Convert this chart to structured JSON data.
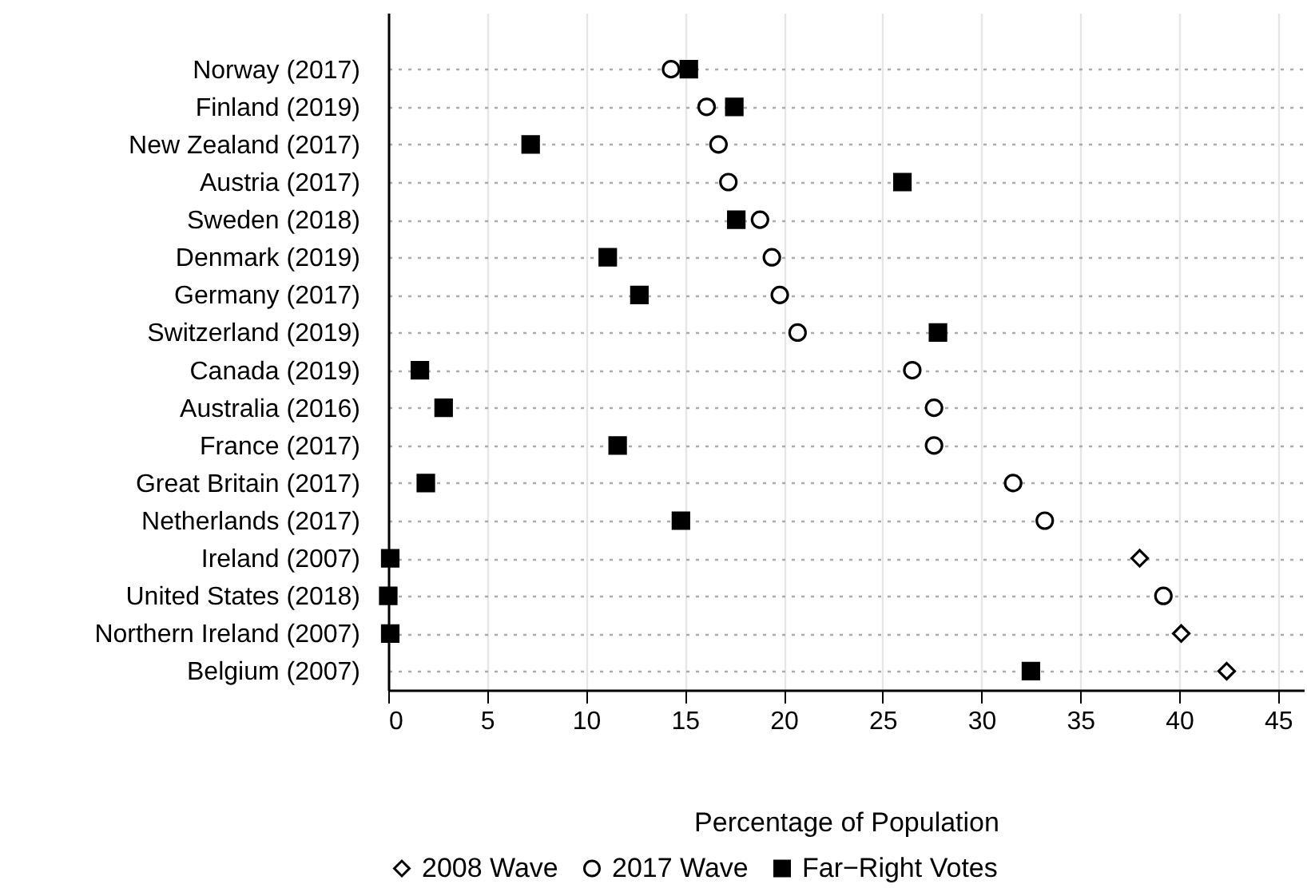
{
  "chart_data": {
    "type": "scatter",
    "xlabel": "Percentage of Population",
    "categories": [
      "Norway (2017)",
      "Finland (2019)",
      "New Zealand (2017)",
      "Austria (2017)",
      "Sweden (2018)",
      "Denmark (2019)",
      "Germany (2017)",
      "Switzerland (2019)",
      "Canada (2019)",
      "Australia (2016)",
      "France (2017)",
      "Great Britain (2017)",
      "Netherlands (2017)",
      "Ireland (2007)",
      "United States (2018)",
      "Northern Ireland (2007)",
      "Belgium (2007)"
    ],
    "orientation": "horizontal",
    "xlim": [
      0,
      46.3
    ],
    "xticks": [
      0,
      5,
      10,
      15,
      20,
      25,
      30,
      35,
      40,
      45
    ],
    "grid": true,
    "legend": "bottom",
    "series": [
      {
        "name": "2008 Wave",
        "color": "#000000",
        "marker": "diamond",
        "values": [
          null,
          null,
          null,
          null,
          null,
          null,
          null,
          null,
          null,
          null,
          null,
          null,
          null,
          38.0,
          null,
          40.1,
          42.4
        ]
      },
      {
        "name": "2017 Wave",
        "color": "#000000",
        "marker": "circle",
        "values": [
          14.3,
          16.1,
          16.7,
          17.2,
          18.8,
          19.4,
          19.8,
          20.7,
          26.5,
          27.6,
          27.6,
          31.6,
          33.2,
          null,
          39.2,
          null,
          null
        ]
      },
      {
        "name": "Far−Right Votes",
        "color": "#000000",
        "marker": "square",
        "values": [
          15.2,
          17.5,
          7.2,
          26.0,
          17.6,
          11.1,
          12.7,
          27.8,
          1.6,
          2.8,
          11.6,
          1.9,
          14.8,
          0.1,
          0.0,
          0.1,
          32.5
        ]
      }
    ]
  }
}
